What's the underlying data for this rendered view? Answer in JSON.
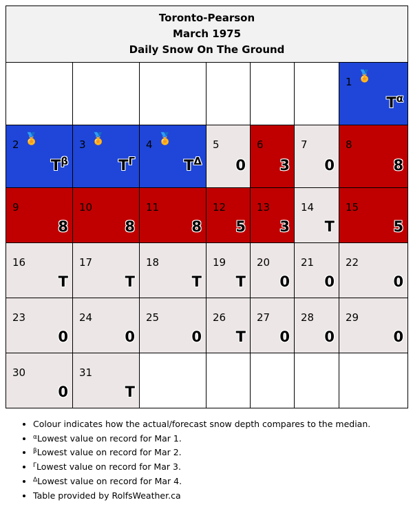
{
  "title": {
    "station": "Toronto-Pearson",
    "month": "March 1975",
    "subtitle": "Daily Snow On The Ground"
  },
  "colors": {
    "record_low": "#1f46d8",
    "above_median": "#c00000",
    "at_or_below_median": "#ece6e6",
    "empty": "#ffffff"
  },
  "medal_icon": "medal-icon",
  "medal_glyph": "🏅",
  "weeks": [
    [
      null,
      null,
      null,
      null,
      null,
      null,
      {
        "day": "1",
        "value": "T",
        "sup": "α",
        "status": "record_low",
        "medal": true
      }
    ],
    [
      {
        "day": "2",
        "value": "T",
        "sup": "β",
        "status": "record_low",
        "medal": true
      },
      {
        "day": "3",
        "value": "T",
        "sup": "Γ",
        "status": "record_low",
        "medal": true
      },
      {
        "day": "4",
        "value": "T",
        "sup": "Δ",
        "status": "record_low",
        "medal": true
      },
      {
        "day": "5",
        "value": "0",
        "status": "at_or_below_median"
      },
      {
        "day": "6",
        "value": "3",
        "status": "above_median"
      },
      {
        "day": "7",
        "value": "0",
        "status": "at_or_below_median"
      },
      {
        "day": "8",
        "value": "8",
        "status": "above_median"
      }
    ],
    [
      {
        "day": "9",
        "value": "8",
        "status": "above_median"
      },
      {
        "day": "10",
        "value": "8",
        "status": "above_median"
      },
      {
        "day": "11",
        "value": "8",
        "status": "above_median"
      },
      {
        "day": "12",
        "value": "5",
        "status": "above_median"
      },
      {
        "day": "13",
        "value": "3",
        "status": "above_median"
      },
      {
        "day": "14",
        "value": "T",
        "status": "at_or_below_median"
      },
      {
        "day": "15",
        "value": "5",
        "status": "above_median"
      }
    ],
    [
      {
        "day": "16",
        "value": "T",
        "status": "at_or_below_median"
      },
      {
        "day": "17",
        "value": "T",
        "status": "at_or_below_median"
      },
      {
        "day": "18",
        "value": "T",
        "status": "at_or_below_median"
      },
      {
        "day": "19",
        "value": "T",
        "status": "at_or_below_median"
      },
      {
        "day": "20",
        "value": "0",
        "status": "at_or_below_median"
      },
      {
        "day": "21",
        "value": "0",
        "status": "at_or_below_median"
      },
      {
        "day": "22",
        "value": "0",
        "status": "at_or_below_median"
      }
    ],
    [
      {
        "day": "23",
        "value": "0",
        "status": "at_or_below_median"
      },
      {
        "day": "24",
        "value": "0",
        "status": "at_or_below_median"
      },
      {
        "day": "25",
        "value": "0",
        "status": "at_or_below_median"
      },
      {
        "day": "26",
        "value": "T",
        "status": "at_or_below_median"
      },
      {
        "day": "27",
        "value": "0",
        "status": "at_or_below_median"
      },
      {
        "day": "28",
        "value": "0",
        "status": "at_or_below_median"
      },
      {
        "day": "29",
        "value": "0",
        "status": "at_or_below_median"
      }
    ],
    [
      {
        "day": "30",
        "value": "0",
        "status": "at_or_below_median"
      },
      {
        "day": "31",
        "value": "T",
        "status": "at_or_below_median"
      },
      null,
      null,
      null,
      null,
      null
    ]
  ],
  "notes": [
    {
      "sup": "",
      "text": "Colour indicates how the actual/forecast snow depth compares to the median."
    },
    {
      "sup": "α",
      "text": "Lowest value on record for Mar 1."
    },
    {
      "sup": "β",
      "text": "Lowest value on record for Mar 2."
    },
    {
      "sup": "Γ",
      "text": "Lowest value on record for Mar 3."
    },
    {
      "sup": "Δ",
      "text": "Lowest value on record for Mar 4."
    },
    {
      "sup": "",
      "text": "Table provided by RolfsWeather.ca"
    }
  ]
}
